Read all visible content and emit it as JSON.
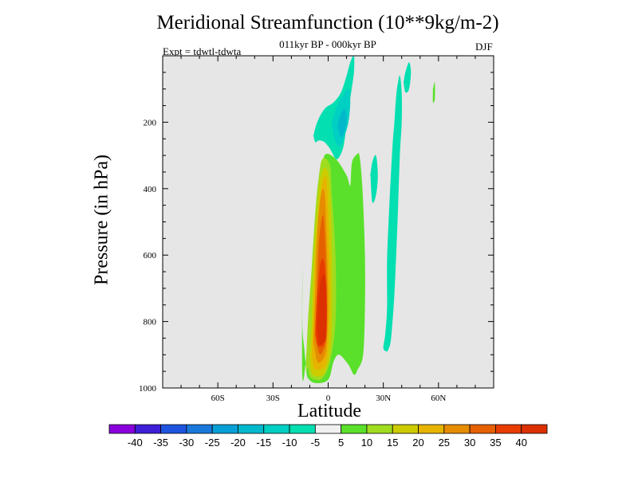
{
  "chart_data": {
    "type": "contour",
    "title": "Meridional Streamfunction (10**9kg/m-2)",
    "subtitle": "011kyr BP - 000kyr BP",
    "left_label": "Expt = tdwtl-tdwta",
    "right_label": "DJF",
    "xlabel": "Latitude",
    "ylabel": "Pressure (in hPa)",
    "xlim": [
      -90,
      90
    ],
    "ylim": [
      1000,
      0
    ],
    "x_ticks": [
      {
        "value": -60,
        "label": "60S"
      },
      {
        "value": -30,
        "label": "30S"
      },
      {
        "value": 0,
        "label": "0"
      },
      {
        "value": 30,
        "label": "30N"
      },
      {
        "value": 60,
        "label": "60N"
      }
    ],
    "y_ticks": [
      {
        "value": 200,
        "label": "200"
      },
      {
        "value": 400,
        "label": "400"
      },
      {
        "value": 600,
        "label": "600"
      },
      {
        "value": 800,
        "label": "800"
      },
      {
        "value": 1000,
        "label": "1000"
      }
    ],
    "background_color": "#e6e6e6",
    "colorbar": {
      "levels": [
        "-40",
        "-35",
        "-30",
        "-25",
        "-20",
        "-15",
        "-10",
        "-5",
        "5",
        "10",
        "15",
        "20",
        "25",
        "30",
        "35",
        "40"
      ],
      "colors": [
        "#8a00dc",
        "#3e1ed7",
        "#1f54e0",
        "#1a78da",
        "#06a0d6",
        "#02b9cc",
        "#00cfc3",
        "#04dfb1",
        "#f0f0f0",
        "#5ae02a",
        "#a0dc1f",
        "#cccc00",
        "#e6b400",
        "#e68c00",
        "#e66000",
        "#e83c00",
        "#dc3000"
      ]
    },
    "regions": [
      {
        "name": "region-positive-0-5",
        "color": "#5ae02a",
        "lat": [
          -14,
          -11,
          -8,
          -5,
          -3,
          -2,
          4,
          10,
          12,
          13,
          16,
          17,
          18,
          19,
          20,
          20,
          19,
          16,
          14,
          11,
          6,
          3,
          0,
          -7,
          -11,
          -12,
          -13,
          -14,
          -14,
          -14
        ],
        "p": [
          970,
          860,
          700,
          520,
          380,
          300,
          310,
          360,
          390,
          320,
          295,
          300,
          350,
          440,
          600,
          760,
          900,
          945,
          960,
          930,
          900,
          920,
          975,
          985,
          970,
          940,
          880,
          820,
          700,
          620
        ]
      },
      {
        "name": "region-positive-5-10",
        "color": "#a0dc1f",
        "lat": [
          -12,
          -11,
          -9,
          -7,
          -5,
          -3,
          1,
          2,
          4,
          4,
          1,
          -3,
          -7,
          -10,
          -11
        ],
        "p": [
          940,
          800,
          640,
          470,
          360,
          310,
          330,
          420,
          600,
          800,
          920,
          970,
          975,
          965,
          940
        ]
      },
      {
        "name": "region-positive-10-15",
        "color": "#cccc00",
        "lat": [
          -10,
          -9,
          -8,
          -6,
          -4,
          -1,
          1,
          2,
          2,
          1,
          -2,
          -6,
          -9,
          -10
        ],
        "p": [
          920,
          800,
          620,
          460,
          360,
          340,
          400,
          600,
          800,
          900,
          955,
          965,
          955,
          920
        ]
      },
      {
        "name": "region-positive-15-20",
        "color": "#e6b400",
        "lat": [
          -9,
          -8,
          -7,
          -5,
          -3,
          -1,
          0,
          1,
          0,
          -2,
          -6,
          -8,
          -9
        ],
        "p": [
          900,
          780,
          600,
          460,
          380,
          370,
          470,
          700,
          880,
          935,
          945,
          935,
          900
        ]
      },
      {
        "name": "region-positive-20-25",
        "color": "#e68c00",
        "lat": [
          -8,
          -7,
          -6,
          -4,
          -2,
          -1,
          0,
          -1,
          -3,
          -6,
          -8
        ],
        "p": [
          860,
          700,
          540,
          420,
          410,
          520,
          750,
          880,
          915,
          920,
          860
        ]
      },
      {
        "name": "region-positive-25-30",
        "color": "#e66000",
        "lat": [
          -7,
          -6,
          -5,
          -3,
          -2,
          -1,
          -1,
          -3,
          -5,
          -7
        ],
        "p": [
          840,
          700,
          560,
          480,
          520,
          660,
          840,
          890,
          895,
          840
        ]
      },
      {
        "name": "region-positive-30-35",
        "color": "#e83c00",
        "lat": [
          -7,
          -6,
          -4,
          -2,
          -1,
          -2,
          -4,
          -6,
          -7
        ],
        "p": [
          830,
          720,
          620,
          630,
          760,
          860,
          875,
          870,
          830
        ]
      },
      {
        "name": "region-positive-35-40",
        "color": "#dc3000",
        "lat": [
          -6,
          -5,
          -3,
          -1,
          -1,
          -3,
          -5,
          -6
        ],
        "p": [
          820,
          720,
          660,
          690,
          840,
          865,
          865,
          820
        ]
      },
      {
        "name": "region-negative-north-column",
        "color": "#04dfb1",
        "lat": [
          30,
          31,
          32,
          32,
          33,
          34,
          35,
          36,
          37,
          38,
          39,
          40,
          40,
          39,
          38,
          37,
          36,
          35,
          34,
          33,
          32
        ],
        "p": [
          880,
          840,
          760,
          620,
          480,
          370,
          270,
          200,
          120,
          80,
          60,
          110,
          200,
          300,
          460,
          600,
          720,
          800,
          860,
          880,
          890
        ]
      },
      {
        "name": "region-negative-small-1",
        "color": "#04dfb1",
        "lat": [
          23,
          24,
          26,
          27,
          26,
          24,
          23
        ],
        "p": [
          360,
          320,
          300,
          360,
          420,
          440,
          360
        ]
      },
      {
        "name": "region-negative-small-2",
        "color": "#04dfb1",
        "lat": [
          41,
          42,
          44,
          45,
          44,
          42,
          41
        ],
        "p": [
          80,
          50,
          20,
          50,
          100,
          110,
          80
        ]
      },
      {
        "name": "region-negative-upper-0-5",
        "color": "#04dfb1",
        "lat": [
          -8,
          -6,
          -2,
          3,
          7,
          10,
          12,
          14,
          14,
          12,
          11,
          10,
          9,
          8,
          6,
          4,
          1,
          -2,
          -5,
          -7,
          -8
        ],
        "p": [
          240,
          200,
          160,
          140,
          110,
          60,
          20,
          0,
          50,
          130,
          170,
          210,
          250,
          280,
          305,
          310,
          280,
          260,
          255,
          260,
          240
        ]
      },
      {
        "name": "region-negative-upper-5-10",
        "color": "#00cfc3",
        "lat": [
          2,
          5,
          8,
          11,
          12,
          11,
          9,
          7,
          5,
          3,
          2
        ],
        "p": [
          200,
          150,
          120,
          100,
          140,
          200,
          240,
          270,
          270,
          240,
          200
        ]
      },
      {
        "name": "region-negative-upper-10-15",
        "color": "#02b9cc",
        "lat": [
          5,
          7,
          9,
          10,
          9,
          7,
          5
        ],
        "p": [
          210,
          175,
          160,
          190,
          225,
          245,
          210
        ]
      },
      {
        "name": "region-small-positive-north",
        "color": "#5ae02a",
        "lat": [
          57,
          58,
          58,
          57,
          57
        ],
        "p": [
          100,
          80,
          130,
          140,
          100
        ]
      }
    ]
  }
}
